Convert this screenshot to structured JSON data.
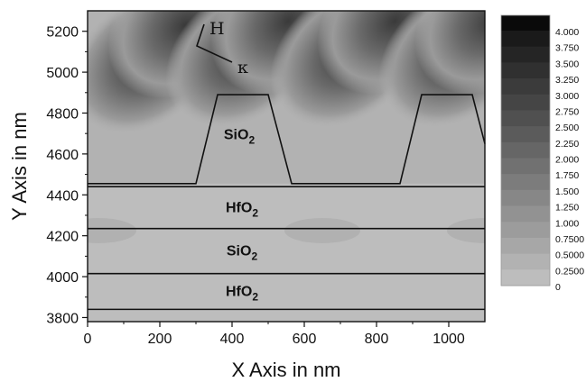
{
  "chart_data": {
    "type": "heatmap",
    "xlabel": "X Axis in nm",
    "ylabel": "Y Axis in nm",
    "xlim": [
      0,
      1100
    ],
    "ylim": [
      3780,
      5300
    ],
    "x_ticks": [
      0,
      200,
      400,
      600,
      800,
      1000
    ],
    "y_ticks": [
      3800,
      4000,
      4200,
      4400,
      4600,
      4800,
      5000,
      5200
    ],
    "colorbar": {
      "min": 0,
      "max": 4.0,
      "labels": [
        "4.000",
        "3.750",
        "3.500",
        "3.250",
        "3.000",
        "2.750",
        "2.500",
        "2.250",
        "2.000",
        "1.750",
        "1.500",
        "1.250",
        "1.000",
        "0.7500",
        "0.5000",
        "0.2500",
        "0"
      ],
      "color_high": "#0a0a0a",
      "color_low": "#bdbdbd"
    },
    "layers": [
      {
        "label_main": "HfO",
        "label_sub": "2",
        "y_bottom": 3840,
        "y_top": 4015
      },
      {
        "label_main": "SiO",
        "label_sub": "2",
        "y_bottom": 4015,
        "y_top": 4235
      },
      {
        "label_main": "HfO",
        "label_sub": "2",
        "y_bottom": 4235,
        "y_top": 4440
      }
    ],
    "grating": {
      "label_main": "SiO",
      "label_sub": "2",
      "base_y": 4455,
      "top_y": 4890,
      "profile_x": [
        0,
        300,
        360,
        500,
        565,
        865,
        925,
        1065,
        1100
      ],
      "profile_y": [
        4455,
        4455,
        4890,
        4890,
        4455,
        4455,
        4890,
        4890,
        4650
      ]
    },
    "annotations": {
      "field_h": "H",
      "wavevector": "κ"
    }
  }
}
